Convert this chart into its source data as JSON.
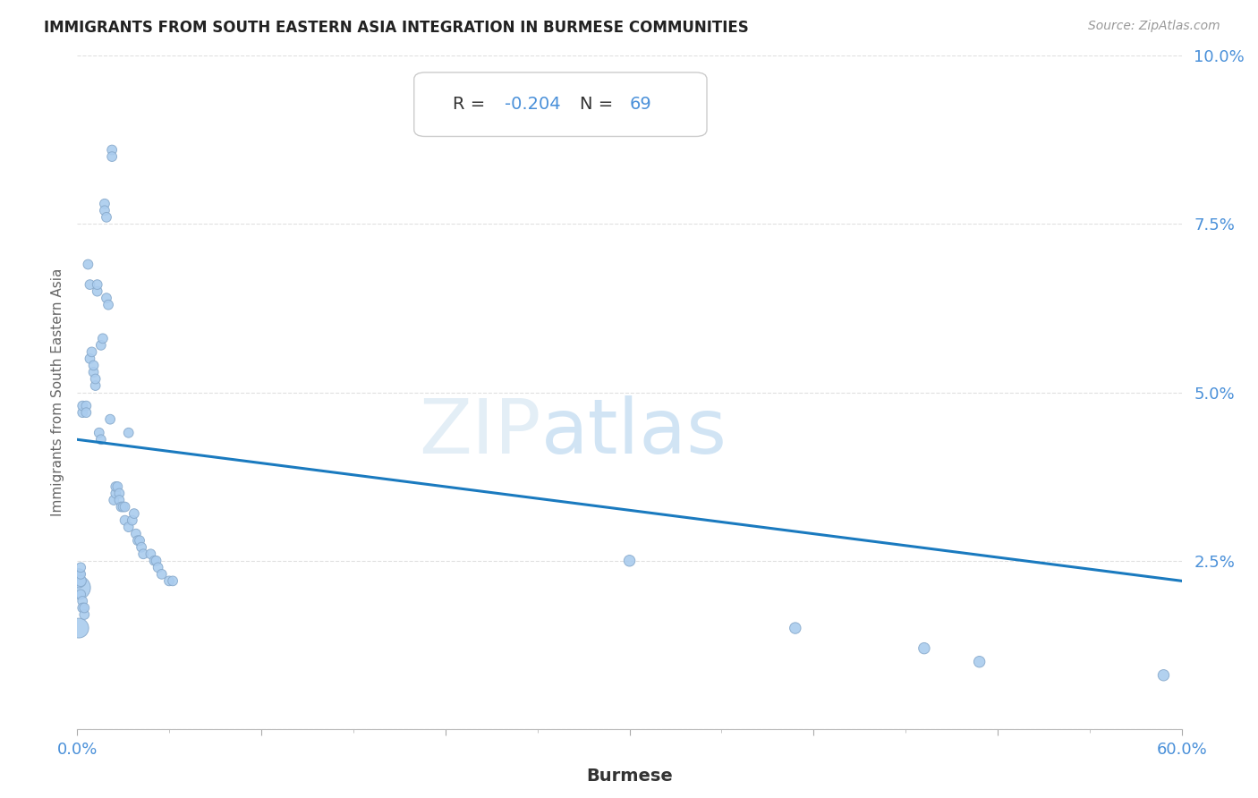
{
  "title": "IMMIGRANTS FROM SOUTH EASTERN ASIA INTEGRATION IN BURMESE COMMUNITIES",
  "source": "Source: ZipAtlas.com",
  "xlabel": "Burmese",
  "ylabel": "Immigrants from South Eastern Asia",
  "R": -0.204,
  "N": 69,
  "xlim": [
    0.0,
    0.6
  ],
  "ylim": [
    0.0,
    0.1
  ],
  "scatter_color": "#aaccee",
  "scatter_edge_color": "#88aacc",
  "line_color": "#1a7abf",
  "title_color": "#222222",
  "tick_color": "#4a90d9",
  "source_color": "#999999",
  "grid_color": "#dddddd",
  "background_color": "#ffffff",
  "line_y_start": 0.043,
  "line_y_end": 0.022,
  "scatter_points": [
    [
      0.001,
      0.021
    ],
    [
      0.001,
      0.022
    ],
    [
      0.001,
      0.023
    ],
    [
      0.001,
      0.015
    ],
    [
      0.002,
      0.022
    ],
    [
      0.002,
      0.023
    ],
    [
      0.002,
      0.024
    ],
    [
      0.002,
      0.02
    ],
    [
      0.003,
      0.019
    ],
    [
      0.003,
      0.018
    ],
    [
      0.003,
      0.047
    ],
    [
      0.003,
      0.048
    ],
    [
      0.004,
      0.017
    ],
    [
      0.004,
      0.018
    ],
    [
      0.005,
      0.048
    ],
    [
      0.005,
      0.047
    ],
    [
      0.006,
      0.069
    ],
    [
      0.007,
      0.066
    ],
    [
      0.007,
      0.055
    ],
    [
      0.008,
      0.056
    ],
    [
      0.009,
      0.053
    ],
    [
      0.009,
      0.054
    ],
    [
      0.01,
      0.051
    ],
    [
      0.01,
      0.052
    ],
    [
      0.011,
      0.065
    ],
    [
      0.011,
      0.066
    ],
    [
      0.012,
      0.044
    ],
    [
      0.013,
      0.043
    ],
    [
      0.013,
      0.057
    ],
    [
      0.014,
      0.058
    ],
    [
      0.015,
      0.078
    ],
    [
      0.015,
      0.077
    ],
    [
      0.016,
      0.076
    ],
    [
      0.016,
      0.064
    ],
    [
      0.017,
      0.063
    ],
    [
      0.018,
      0.046
    ],
    [
      0.019,
      0.086
    ],
    [
      0.019,
      0.085
    ],
    [
      0.02,
      0.034
    ],
    [
      0.021,
      0.035
    ],
    [
      0.021,
      0.036
    ],
    [
      0.022,
      0.036
    ],
    [
      0.023,
      0.035
    ],
    [
      0.023,
      0.034
    ],
    [
      0.024,
      0.033
    ],
    [
      0.025,
      0.033
    ],
    [
      0.026,
      0.031
    ],
    [
      0.026,
      0.033
    ],
    [
      0.028,
      0.044
    ],
    [
      0.028,
      0.03
    ],
    [
      0.03,
      0.031
    ],
    [
      0.031,
      0.032
    ],
    [
      0.032,
      0.029
    ],
    [
      0.033,
      0.028
    ],
    [
      0.034,
      0.028
    ],
    [
      0.035,
      0.027
    ],
    [
      0.036,
      0.026
    ],
    [
      0.04,
      0.026
    ],
    [
      0.042,
      0.025
    ],
    [
      0.043,
      0.025
    ],
    [
      0.044,
      0.024
    ],
    [
      0.046,
      0.023
    ],
    [
      0.05,
      0.022
    ],
    [
      0.052,
      0.022
    ],
    [
      0.3,
      0.025
    ],
    [
      0.39,
      0.015
    ],
    [
      0.46,
      0.012
    ],
    [
      0.49,
      0.01
    ],
    [
      0.59,
      0.008
    ]
  ],
  "scatter_sizes": [
    350,
    120,
    80,
    250,
    80,
    60,
    60,
    60,
    60,
    60,
    60,
    60,
    60,
    60,
    60,
    60,
    60,
    60,
    60,
    60,
    60,
    60,
    60,
    60,
    60,
    60,
    60,
    60,
    60,
    60,
    60,
    60,
    60,
    60,
    60,
    60,
    60,
    60,
    60,
    60,
    60,
    60,
    60,
    60,
    60,
    60,
    60,
    60,
    60,
    60,
    60,
    60,
    60,
    60,
    60,
    60,
    60,
    60,
    60,
    60,
    60,
    60,
    60,
    60,
    80,
    80,
    80,
    80,
    80
  ]
}
